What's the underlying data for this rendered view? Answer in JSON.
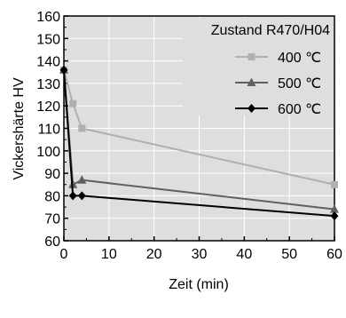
{
  "chart_data": {
    "type": "line",
    "title": "",
    "xlabel": "Zeit (min)",
    "ylabel": "Vickershärte HV",
    "xlim": [
      0,
      60
    ],
    "ylim": [
      60,
      160
    ],
    "xticks": [
      0,
      10,
      20,
      30,
      40,
      50,
      60
    ],
    "yticks": [
      60,
      70,
      80,
      90,
      100,
      110,
      120,
      130,
      140,
      150,
      160
    ],
    "grid": true,
    "legend_title": "Zustand R470/H04",
    "legend_position": "top-right",
    "series": [
      {
        "name": "400 ℃",
        "color": "#b0b0b0",
        "marker": "square",
        "x": [
          0,
          2,
          4,
          60
        ],
        "y": [
          136,
          121,
          110,
          85
        ]
      },
      {
        "name": "500 ℃",
        "color": "#606060",
        "marker": "triangle",
        "x": [
          0,
          2,
          4,
          60
        ],
        "y": [
          136,
          85,
          87,
          74
        ]
      },
      {
        "name": "600 ℃",
        "color": "#000000",
        "marker": "diamond",
        "x": [
          0,
          2,
          4,
          60
        ],
        "y": [
          136,
          80,
          80,
          71
        ]
      }
    ]
  }
}
